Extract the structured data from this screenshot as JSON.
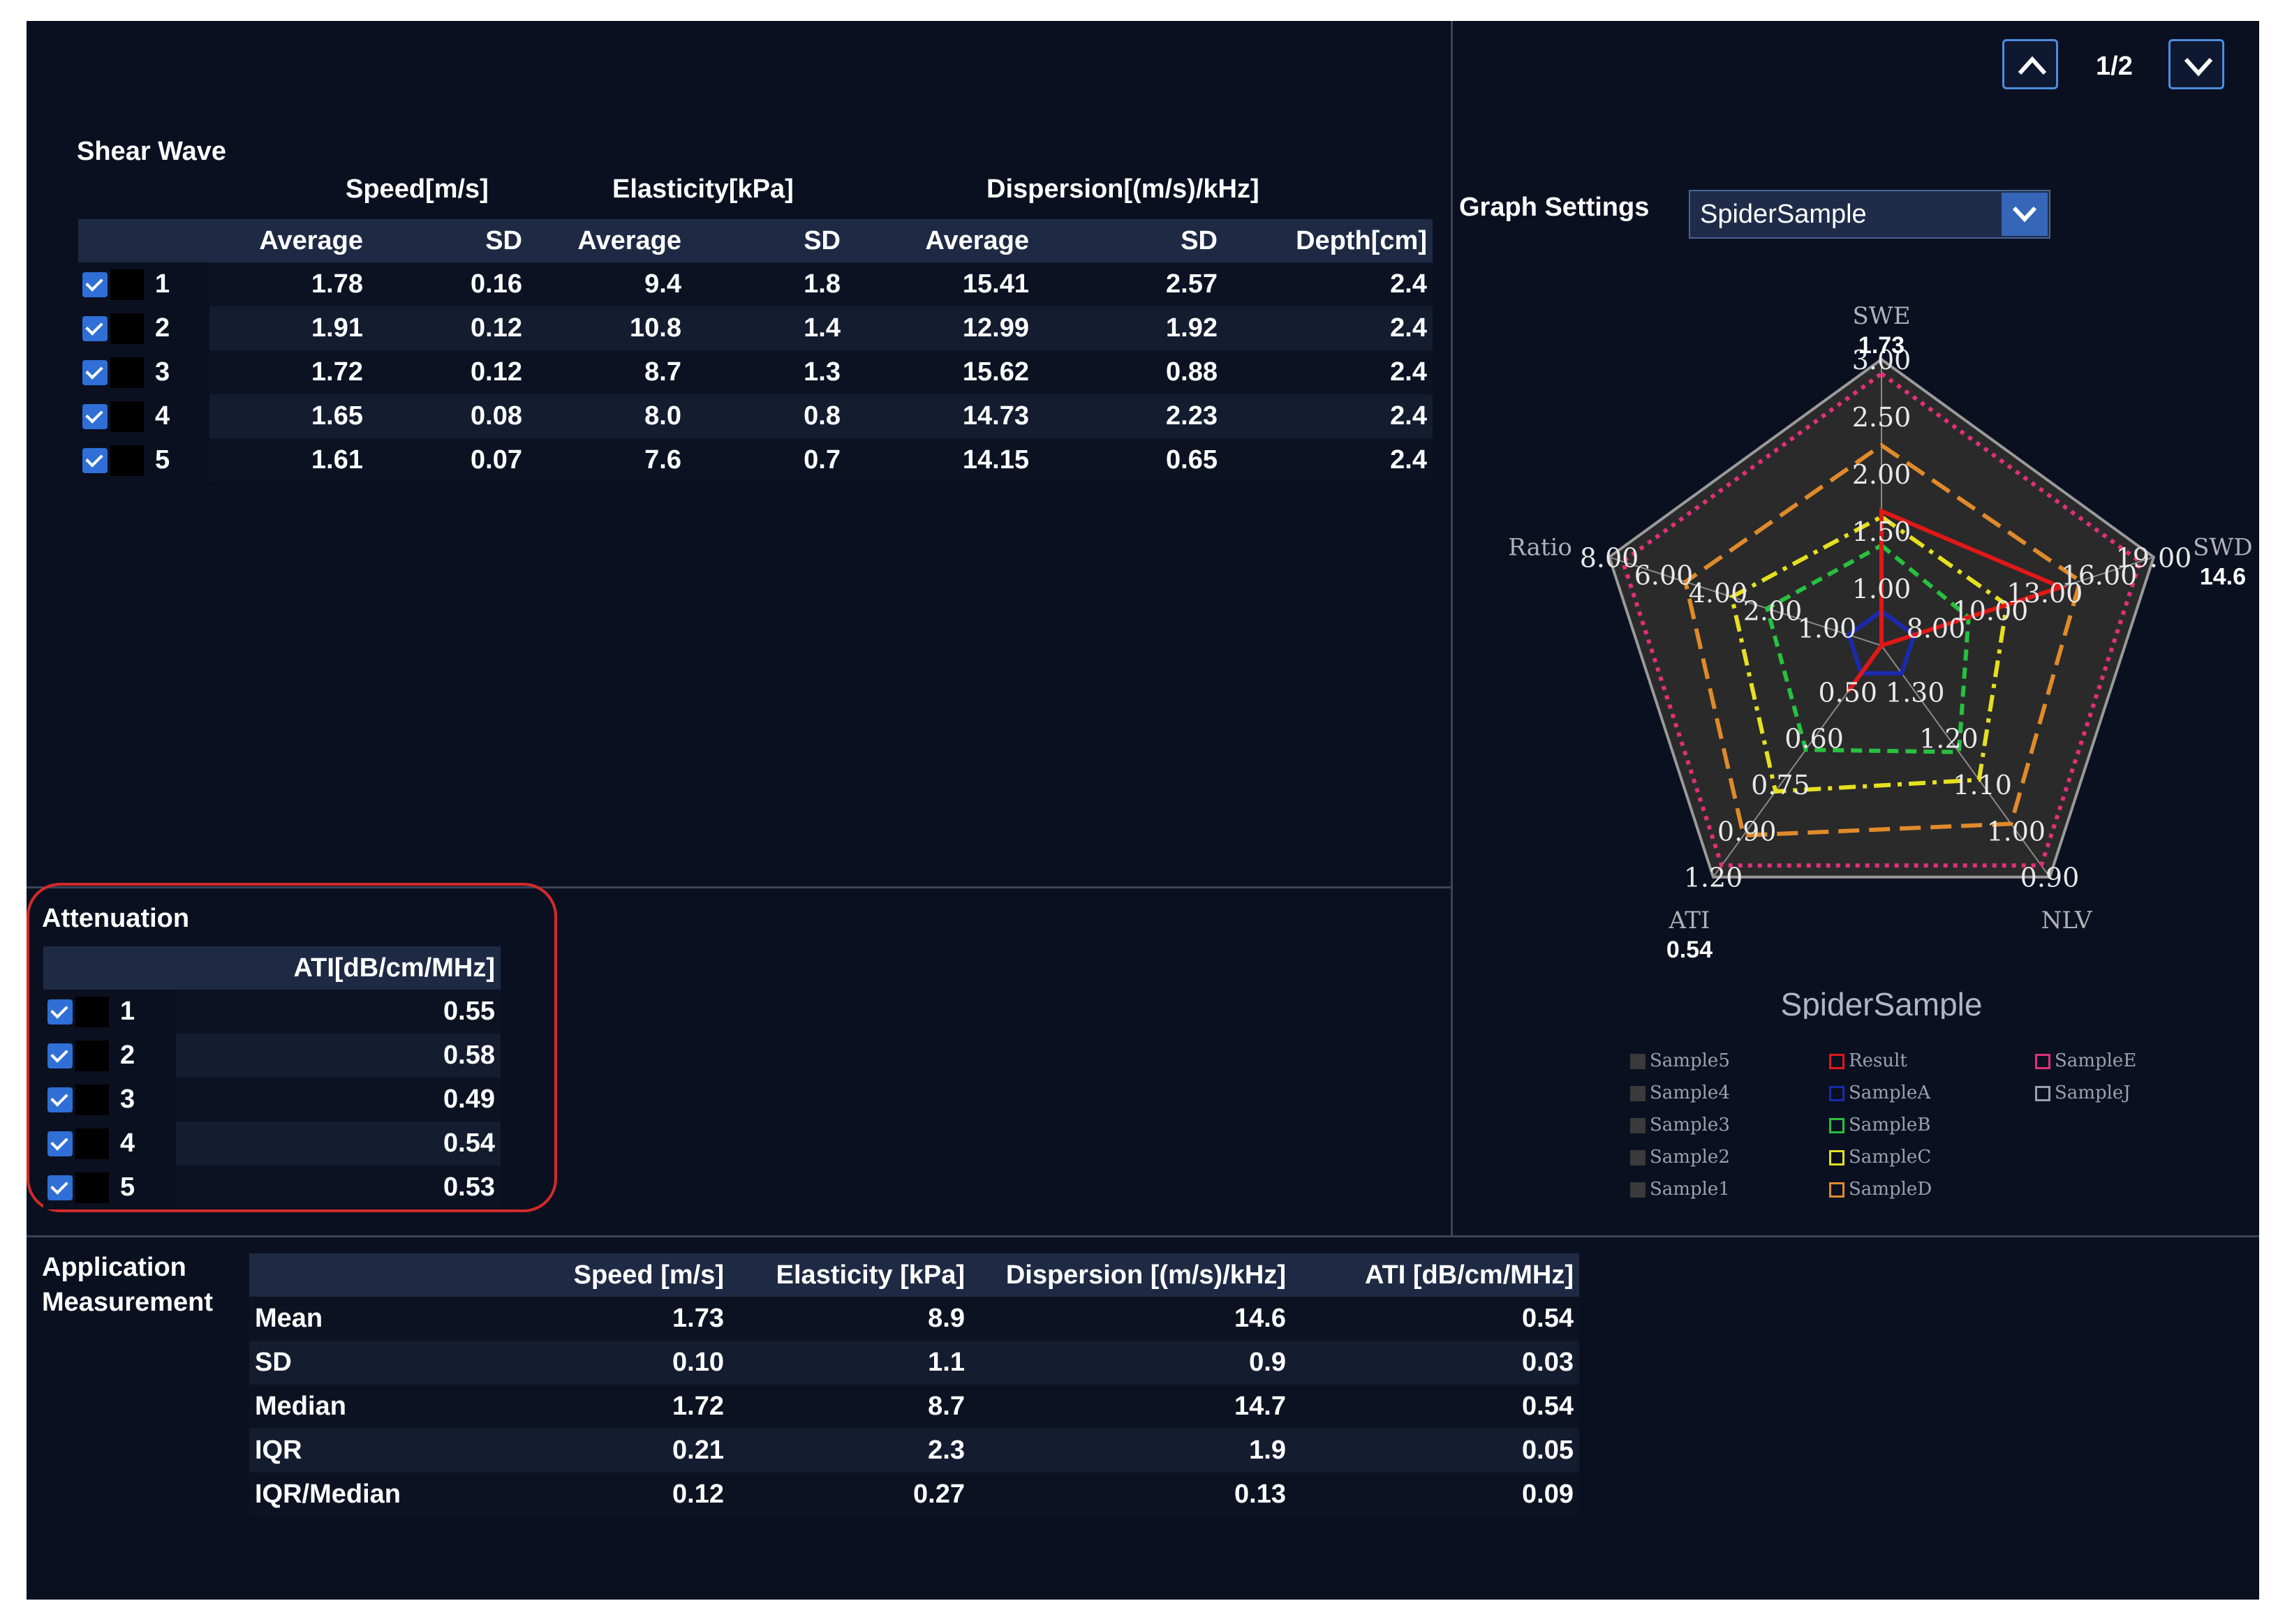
{
  "shear_wave": {
    "title": "Shear Wave",
    "group_speed": "Speed[m/s]",
    "group_elasticity": "Elasticity[kPa]",
    "group_dispersion": "Dispersion[(m/s)/kHz]",
    "col_average": "Average",
    "col_sd": "SD",
    "col_depth": "Depth[cm]",
    "rows": [
      {
        "id": "1",
        "speed_avg": "1.78",
        "speed_sd": "0.16",
        "el_avg": "9.4",
        "el_sd": "1.8",
        "disp_avg": "15.41",
        "disp_sd": "2.57",
        "depth": "2.4"
      },
      {
        "id": "2",
        "speed_avg": "1.91",
        "speed_sd": "0.12",
        "el_avg": "10.8",
        "el_sd": "1.4",
        "disp_avg": "12.99",
        "disp_sd": "1.92",
        "depth": "2.4"
      },
      {
        "id": "3",
        "speed_avg": "1.72",
        "speed_sd": "0.12",
        "el_avg": "8.7",
        "el_sd": "1.3",
        "disp_avg": "15.62",
        "disp_sd": "0.88",
        "depth": "2.4"
      },
      {
        "id": "4",
        "speed_avg": "1.65",
        "speed_sd": "0.08",
        "el_avg": "8.0",
        "el_sd": "0.8",
        "disp_avg": "14.73",
        "disp_sd": "2.23",
        "depth": "2.4"
      },
      {
        "id": "5",
        "speed_avg": "1.61",
        "speed_sd": "0.07",
        "el_avg": "7.6",
        "el_sd": "0.7",
        "disp_avg": "14.15",
        "disp_sd": "0.65",
        "depth": "2.4"
      }
    ]
  },
  "attenuation": {
    "title": "Attenuation",
    "col_ati": "ATI[dB/cm/MHz]",
    "rows": [
      {
        "id": "1",
        "ati": "0.55"
      },
      {
        "id": "2",
        "ati": "0.58"
      },
      {
        "id": "3",
        "ati": "0.49"
      },
      {
        "id": "4",
        "ati": "0.54"
      },
      {
        "id": "5",
        "ati": "0.53"
      }
    ]
  },
  "application": {
    "title_line1": "Application",
    "title_line2": "Measurement",
    "col_speed": "Speed [m/s]",
    "col_elasticity": "Elasticity [kPa]",
    "col_dispersion": "Dispersion [(m/s)/kHz]",
    "col_ati": "ATI [dB/cm/MHz]",
    "rows": [
      {
        "label": "Mean",
        "speed": "1.73",
        "el": "8.9",
        "disp": "14.6",
        "ati": "0.54"
      },
      {
        "label": "SD",
        "speed": "0.10",
        "el": "1.1",
        "disp": "0.9",
        "ati": "0.03"
      },
      {
        "label": "Median",
        "speed": "1.72",
        "el": "8.7",
        "disp": "14.7",
        "ati": "0.54"
      },
      {
        "label": "IQR",
        "speed": "0.21",
        "el": "2.3",
        "disp": "1.9",
        "ati": "0.05"
      },
      {
        "label": "IQR/Median",
        "speed": "0.12",
        "el": "0.27",
        "disp": "0.13",
        "ati": "0.09"
      }
    ]
  },
  "pager": {
    "page": "1/2"
  },
  "graph_settings": {
    "label": "Graph Settings",
    "selected": "SpiderSample"
  },
  "chart_data": {
    "type": "radar",
    "title": "SpiderSample",
    "axes": [
      {
        "name": "SWE",
        "value_label": "1.73",
        "ticks": [
          "3.00",
          "2.50",
          "2.00",
          "1.50",
          "1.00"
        ]
      },
      {
        "name": "SWD",
        "value_label": "14.6",
        "ticks": [
          "19.00",
          "16.00",
          "13.00",
          "10.00",
          "8.00"
        ]
      },
      {
        "name": "NLV",
        "value_label": "",
        "ticks": [
          "0.90",
          "1.00",
          "1.10",
          "1.20",
          "1.30"
        ]
      },
      {
        "name": "ATI",
        "value_label": "0.54",
        "ticks": [
          "1.20",
          "0.90",
          "0.75",
          "0.60",
          "0.50"
        ]
      },
      {
        "name": "Ratio",
        "value_label": "",
        "ticks": [
          "8.00",
          "6.00",
          "4.00",
          "2.00",
          "1.00"
        ]
      }
    ],
    "series": [
      {
        "name": "SampleE",
        "color": "#e0307a",
        "dash": "6,8",
        "values": [
          0.95,
          0.95,
          0.95,
          0.95,
          0.95
        ]
      },
      {
        "name": "SampleD",
        "color": "#e08a2a",
        "dash": "30,14",
        "values": [
          0.7,
          0.73,
          0.77,
          0.82,
          0.72
        ]
      },
      {
        "name": "SampleC",
        "color": "#e6e020",
        "dash": "24,10,6,10",
        "values": [
          0.45,
          0.46,
          0.58,
          0.63,
          0.55
        ]
      },
      {
        "name": "SampleB",
        "color": "#28c040",
        "dash": "16,10",
        "values": [
          0.35,
          0.32,
          0.46,
          0.45,
          0.42
        ]
      },
      {
        "name": "SampleA",
        "color": "#1a2ab0",
        "dash": "",
        "values": [
          0.12,
          0.12,
          0.12,
          0.12,
          0.12
        ]
      },
      {
        "name": "Result",
        "color": "#e01818",
        "dash": "",
        "values": [
          0.47,
          0.66,
          0.0,
          0.2,
          0.0
        ]
      }
    ],
    "legend": [
      "Sample5",
      "Sample4",
      "Sample3",
      "Sample2",
      "Sample1",
      "Result",
      "SampleA",
      "SampleB",
      "SampleC",
      "SampleD",
      "SampleE",
      "SampleJ"
    ]
  }
}
